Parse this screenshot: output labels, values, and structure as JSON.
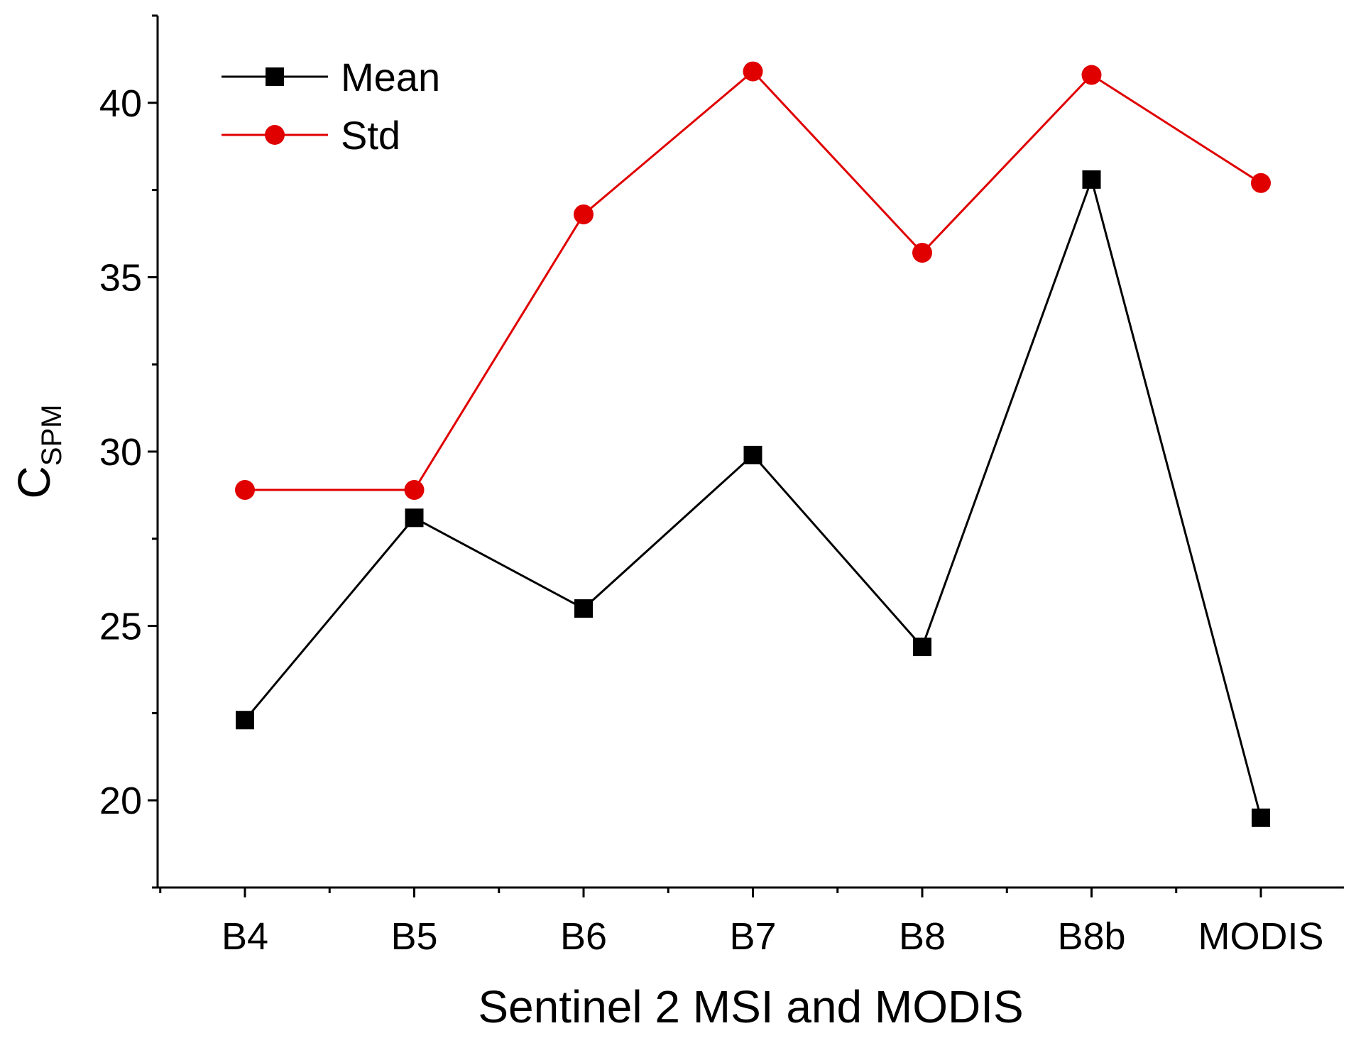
{
  "chart_data": {
    "type": "line",
    "categories": [
      "B4",
      "B5",
      "B6",
      "B7",
      "B8",
      "B8b",
      "MODIS"
    ],
    "series": [
      {
        "name": "Mean",
        "values": [
          22.3,
          28.1,
          25.5,
          29.9,
          24.4,
          37.8,
          19.5
        ],
        "color": "#000000",
        "marker": "square"
      },
      {
        "name": "Std",
        "values": [
          28.9,
          28.9,
          36.8,
          40.9,
          35.7,
          40.8,
          37.7
        ],
        "color": "#e00000",
        "marker": "circle"
      }
    ],
    "xlabel": "Sentinel 2 MSI and MODIS",
    "ylabel": {
      "main": "C",
      "sub": "SPM"
    },
    "ylim": [
      17.5,
      42.5
    ],
    "yticks": [
      20,
      25,
      30,
      35,
      40
    ],
    "yminor_step": 2.5,
    "legend_position": "top-left",
    "grid": false
  }
}
